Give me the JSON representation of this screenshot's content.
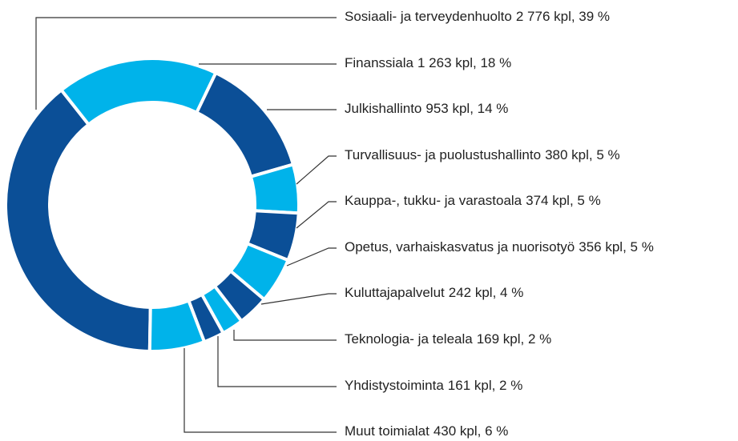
{
  "chart_data": {
    "type": "donut",
    "categories": [
      "Sosiaali- ja terveydenhuolto",
      "Finanssiala",
      "Julkishallinto",
      "Turvallisuus- ja puolustushallinto",
      "Kauppa-, tukku- ja varastoala",
      "Opetus, varhaiskasvatus ja nuorisotyö",
      "Kuluttajapalvelut",
      "Teknologia- ja teleala",
      "Yhdistystoiminta",
      "Muut toimialat"
    ],
    "values": [
      2776,
      1263,
      953,
      380,
      374,
      356,
      242,
      169,
      161,
      430
    ],
    "value_labels": [
      "2 776 kpl, 39 %",
      "1 263 kpl, 18 %",
      "953 kpl, 14 %",
      "380 kpl, 5 %",
      "374 kpl, 5 %",
      "356 kpl, 5 %",
      "242 kpl, 4 %",
      "169 kpl, 2 %",
      "161 kpl, 2 %",
      "430 kpl, 6 %"
    ],
    "colors": [
      "#0b4f97",
      "#00b3ea",
      "#0b4f97",
      "#00b3ea",
      "#0b4f97",
      "#00b3ea",
      "#0b4f97",
      "#00b3ea",
      "#0b4f97",
      "#00b3ea"
    ]
  }
}
